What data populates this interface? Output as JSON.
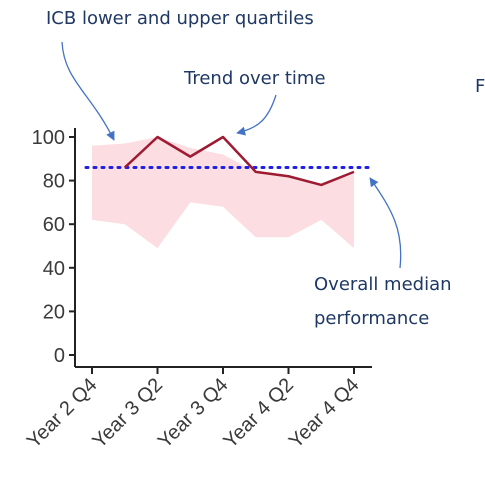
{
  "chart_data": {
    "type": "line",
    "categories": [
      "Year 2 Q4",
      null,
      "Year 3 Q2",
      null,
      "Year 3 Q4",
      null,
      "Year 4 Q2",
      null,
      "Year 4 Q4"
    ],
    "series": [
      {
        "color": "#9e1b32",
        "values": [
          null,
          86,
          100,
          91,
          100,
          84,
          82,
          78,
          84
        ]
      }
    ],
    "band": {
      "color": "#fcdde2",
      "lower": [
        62,
        60,
        49,
        70,
        68,
        54,
        54,
        62,
        49
      ],
      "upper": [
        96,
        97,
        100,
        95,
        92,
        84,
        82,
        78,
        83
      ]
    },
    "median": 86,
    "median_color": "#1f1fe6",
    "ylim": [
      0,
      100
    ],
    "yticks": [
      0,
      20,
      40,
      60,
      80,
      100
    ],
    "annotations": [
      "ICB lower and upper quartiles",
      "Trend over time",
      "Overall median",
      "performance",
      "F"
    ]
  }
}
